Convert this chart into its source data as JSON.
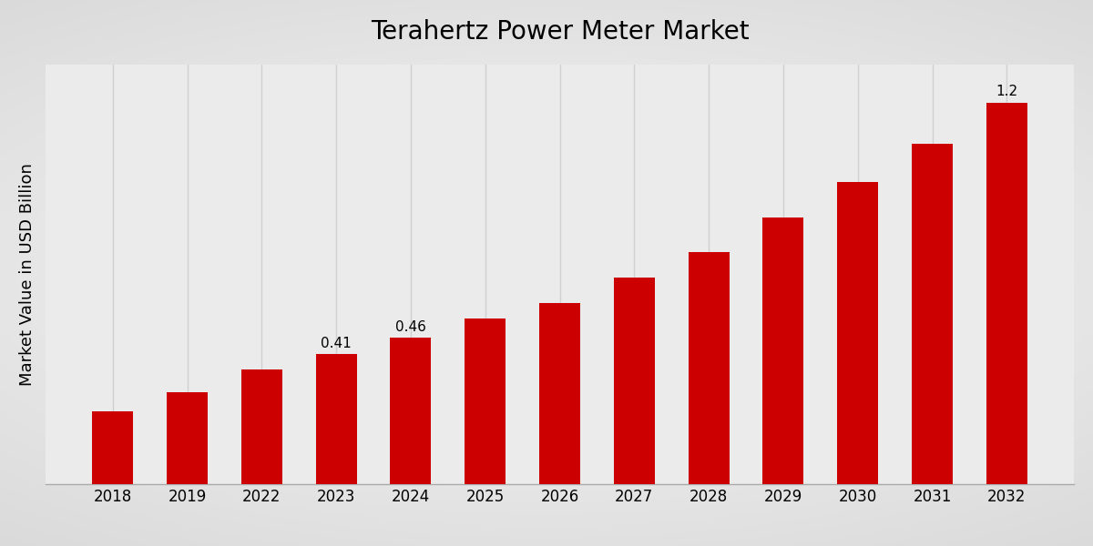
{
  "title": "Terahertz Power Meter Market",
  "ylabel": "Market Value in USD Billion",
  "categories": [
    "2018",
    "2019",
    "2022",
    "2023",
    "2024",
    "2025",
    "2026",
    "2027",
    "2028",
    "2029",
    "2030",
    "2031",
    "2032"
  ],
  "values": [
    0.23,
    0.29,
    0.36,
    0.41,
    0.46,
    0.52,
    0.57,
    0.65,
    0.73,
    0.84,
    0.95,
    1.07,
    1.2
  ],
  "bar_color": "#CC0000",
  "annotations": {
    "2023": "0.41",
    "2024": "0.46",
    "2032": "1.2"
  },
  "bg_light": "#EBEBEB",
  "bg_dark": "#D0D0D0",
  "grid_color": "#CACACA",
  "ylim": [
    0,
    1.32
  ],
  "title_fontsize": 20,
  "ylabel_fontsize": 13,
  "tick_fontsize": 12,
  "annotation_fontsize": 11,
  "bottom_band_color": "#CC0000"
}
